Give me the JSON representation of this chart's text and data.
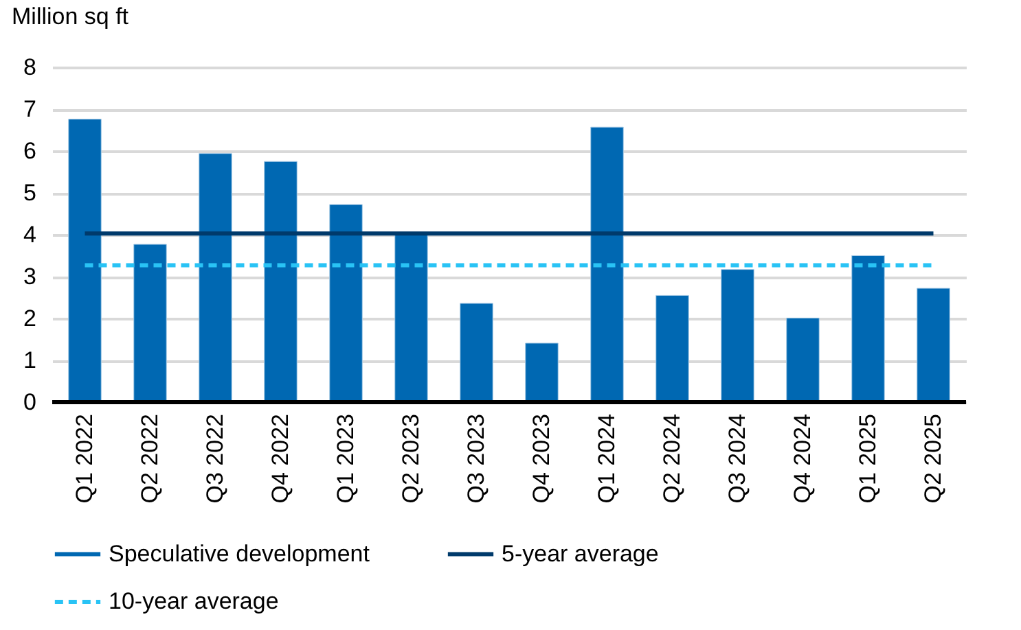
{
  "chart_data": {
    "type": "bar",
    "ylabel": "Million sq ft",
    "categories": [
      "Q1 2022",
      "Q2 2022",
      "Q3 2022",
      "Q4 2022",
      "Q1 2023",
      "Q2 2023",
      "Q3 2023",
      "Q4 2023",
      "Q1 2024",
      "Q2 2024",
      "Q3 2024",
      "Q4 2024",
      "Q1 2025",
      "Q2 2025"
    ],
    "series": [
      {
        "name": "Speculative development",
        "color": "#0068b2",
        "values": [
          6.76,
          3.77,
          5.94,
          5.75,
          4.72,
          4.04,
          2.36,
          1.41,
          6.57,
          2.55,
          3.17,
          2.01,
          3.5,
          2.72
        ]
      },
      {
        "name": "5-year average",
        "type": "line",
        "color": "#003a6b",
        "line_style": "solid",
        "values": [
          4.03,
          4.03,
          4.03,
          4.03,
          4.03,
          4.03,
          4.03,
          4.03,
          4.03,
          4.03,
          4.03,
          4.03,
          4.03,
          4.03
        ]
      },
      {
        "name": "10-year average",
        "type": "line",
        "color": "#29c3f5",
        "line_style": "dashed",
        "values": [
          3.27,
          3.27,
          3.27,
          3.27,
          3.27,
          3.27,
          3.27,
          3.27,
          3.27,
          3.27,
          3.27,
          3.27,
          3.27,
          3.27
        ]
      }
    ],
    "ylim": [
      0,
      8
    ],
    "yticks": [
      0,
      1,
      2,
      3,
      4,
      5,
      6,
      7,
      8
    ],
    "grid": "y",
    "legend": "bottom"
  }
}
